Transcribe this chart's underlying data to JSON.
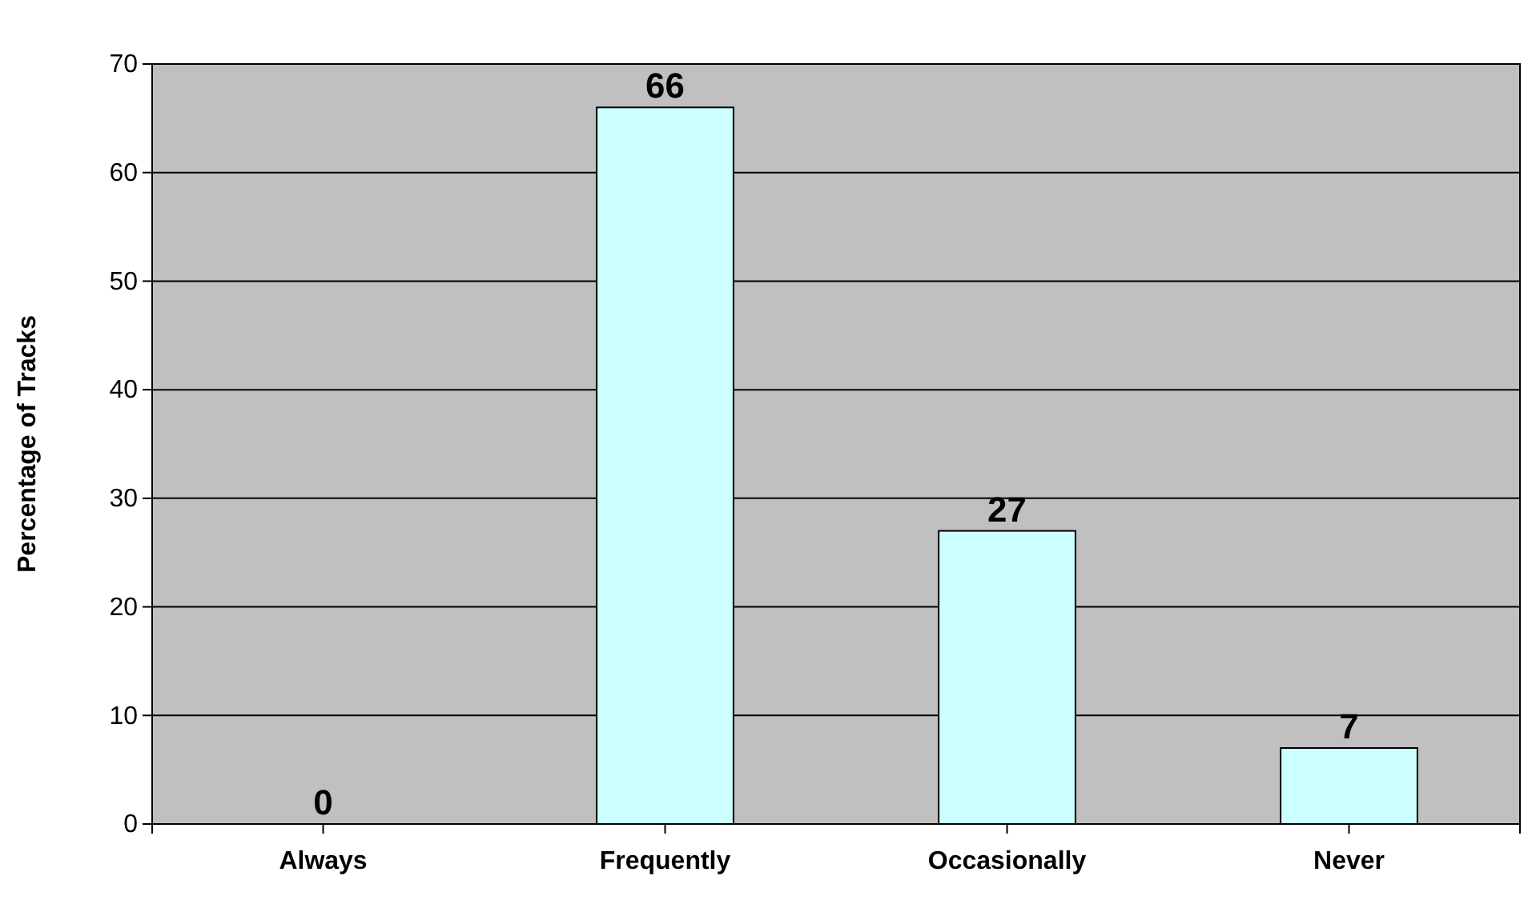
{
  "chart_data": {
    "type": "bar",
    "ylabel": "Percentage of Tracks",
    "categories": [
      "Always",
      "Frequently",
      "Occasionally",
      "Never"
    ],
    "values": [
      0,
      66,
      27,
      7
    ],
    "color": "#ccffff",
    "ylim": [
      0,
      70
    ],
    "yticks": [
      0,
      10,
      20,
      30,
      40,
      50,
      60,
      70
    ],
    "grid": "y",
    "data_labels": true
  }
}
